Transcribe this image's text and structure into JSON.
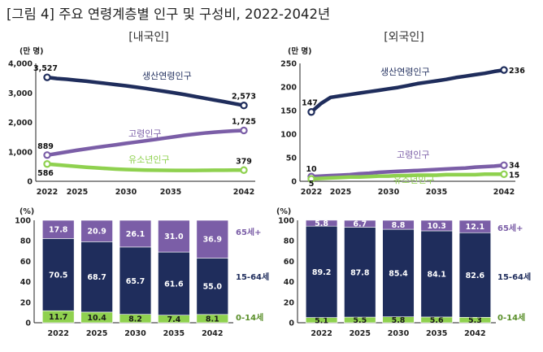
{
  "page_title": "[그림 4] 주요 연령계층별 인구 및 구성비, 2022-2042년",
  "chart_data": [
    {
      "type": "line",
      "panel": "[내국인]",
      "unit_label": "(만 명)",
      "x": [
        2022,
        2042
      ],
      "xticks": [
        "2022",
        "2025",
        "2030",
        "2035",
        "2042"
      ],
      "ylim": [
        0,
        4000
      ],
      "yticks": [
        "0",
        "1,000",
        "2,000",
        "3,000",
        "4,000"
      ],
      "series": [
        {
          "name": "생산연령인구",
          "color": "#1f2d5c",
          "points": [
            [
              2022,
              3527
            ],
            [
              2023,
              3488
            ],
            [
              2024,
              3462
            ],
            [
              2025,
              3430
            ],
            [
              2026,
              3395
            ],
            [
              2027,
              3358
            ],
            [
              2028,
              3318
            ],
            [
              2029,
              3280
            ],
            [
              2030,
              3240
            ],
            [
              2031,
              3198
            ],
            [
              2032,
              3150
            ],
            [
              2033,
              3098
            ],
            [
              2034,
              3048
            ],
            [
              2035,
              2996
            ],
            [
              2036,
              2940
            ],
            [
              2037,
              2880
            ],
            [
              2038,
              2820
            ],
            [
              2039,
              2760
            ],
            [
              2040,
              2700
            ],
            [
              2041,
              2636
            ],
            [
              2042,
              2573
            ]
          ],
          "labels": [
            {
              "x": 2022,
              "y": 3527,
              "text": "3,527"
            },
            {
              "x": 2042,
              "y": 2573,
              "text": "2,573"
            }
          ]
        },
        {
          "name": "고령인구",
          "color": "#7b5ea7",
          "points": [
            [
              2022,
              889
            ],
            [
              2023,
              940
            ],
            [
              2024,
              995
            ],
            [
              2025,
              1050
            ],
            [
              2026,
              1100
            ],
            [
              2027,
              1150
            ],
            [
              2028,
              1195
            ],
            [
              2029,
              1240
            ],
            [
              2030,
              1285
            ],
            [
              2031,
              1330
            ],
            [
              2032,
              1375
            ],
            [
              2033,
              1420
            ],
            [
              2034,
              1468
            ],
            [
              2035,
              1515
            ],
            [
              2036,
              1560
            ],
            [
              2037,
              1600
            ],
            [
              2038,
              1635
            ],
            [
              2039,
              1665
            ],
            [
              2040,
              1690
            ],
            [
              2041,
              1710
            ],
            [
              2042,
              1725
            ]
          ],
          "labels": [
            {
              "x": 2022,
              "y": 889,
              "text": "889"
            },
            {
              "x": 2042,
              "y": 1725,
              "text": "1,725"
            }
          ]
        },
        {
          "name": "유소년인구",
          "color": "#8fd14f",
          "points": [
            [
              2022,
              586
            ],
            [
              2023,
              560
            ],
            [
              2024,
              530
            ],
            [
              2025,
              505
            ],
            [
              2026,
              478
            ],
            [
              2027,
              455
            ],
            [
              2028,
              432
            ],
            [
              2029,
              415
            ],
            [
              2030,
              400
            ],
            [
              2031,
              390
            ],
            [
              2032,
              382
            ],
            [
              2033,
              376
            ],
            [
              2034,
              372
            ],
            [
              2035,
              370
            ],
            [
              2036,
              370
            ],
            [
              2037,
              371
            ],
            [
              2038,
              372
            ],
            [
              2039,
              374
            ],
            [
              2040,
              376
            ],
            [
              2041,
              378
            ],
            [
              2042,
              379
            ]
          ],
          "labels": [
            {
              "x": 2022,
              "y": 586,
              "text": "586"
            },
            {
              "x": 2042,
              "y": 379,
              "text": "379"
            }
          ]
        }
      ]
    },
    {
      "type": "line",
      "panel": "[외국인]",
      "unit_label": "(만 명)",
      "x": [
        2022,
        2042
      ],
      "xticks": [
        "2022",
        "2025",
        "2030",
        "2035",
        "2042"
      ],
      "ylim": [
        0,
        250
      ],
      "yticks": [
        "0",
        "50",
        "100",
        "150",
        "200",
        "250"
      ],
      "series": [
        {
          "name": "생산연령인구",
          "color": "#1f2d5c",
          "points": [
            [
              2022,
              147
            ],
            [
              2023,
              165
            ],
            [
              2024,
              178
            ],
            [
              2025,
              181
            ],
            [
              2026,
              184
            ],
            [
              2027,
              187
            ],
            [
              2028,
              190
            ],
            [
              2029,
              193
            ],
            [
              2030,
              196
            ],
            [
              2031,
              199
            ],
            [
              2032,
              203
            ],
            [
              2033,
              207
            ],
            [
              2034,
              210
            ],
            [
              2035,
              213
            ],
            [
              2036,
              216
            ],
            [
              2037,
              220
            ],
            [
              2038,
              223
            ],
            [
              2039,
              226
            ],
            [
              2040,
              229
            ],
            [
              2041,
              233
            ],
            [
              2042,
              236
            ]
          ],
          "labels": [
            {
              "x": 2022,
              "y": 147,
              "text": "147"
            },
            {
              "x": 2042,
              "y": 236,
              "text": "236"
            }
          ]
        },
        {
          "name": "고령인구",
          "color": "#7b5ea7",
          "points": [
            [
              2022,
              10
            ],
            [
              2023,
              11
            ],
            [
              2024,
              12
            ],
            [
              2025,
              13
            ],
            [
              2026,
              14
            ],
            [
              2027,
              16
            ],
            [
              2028,
              17
            ],
            [
              2029,
              19
            ],
            [
              2030,
              20
            ],
            [
              2031,
              21
            ],
            [
              2032,
              22
            ],
            [
              2033,
              23
            ],
            [
              2034,
              24
            ],
            [
              2035,
              25
            ],
            [
              2036,
              26
            ],
            [
              2037,
              27
            ],
            [
              2038,
              28
            ],
            [
              2039,
              30
            ],
            [
              2040,
              31
            ],
            [
              2041,
              32
            ],
            [
              2042,
              34
            ]
          ],
          "labels": [
            {
              "x": 2022,
              "y": 10,
              "text": "10"
            },
            {
              "x": 2042,
              "y": 34,
              "text": "34"
            }
          ]
        },
        {
          "name": "유소년인구",
          "color": "#8fd14f",
          "points": [
            [
              2022,
              5
            ],
            [
              2023,
              6
            ],
            [
              2024,
              7
            ],
            [
              2025,
              8
            ],
            [
              2026,
              9
            ],
            [
              2027,
              9
            ],
            [
              2028,
              10
            ],
            [
              2029,
              11
            ],
            [
              2030,
              11
            ],
            [
              2031,
              12
            ],
            [
              2032,
              12
            ],
            [
              2033,
              13
            ],
            [
              2034,
              13
            ],
            [
              2035,
              13
            ],
            [
              2036,
              14
            ],
            [
              2037,
              14
            ],
            [
              2038,
              14
            ],
            [
              2039,
              14
            ],
            [
              2040,
              15
            ],
            [
              2041,
              15
            ],
            [
              2042,
              15
            ]
          ],
          "labels": [
            {
              "x": 2022,
              "y": 5,
              "text": "5"
            },
            {
              "x": 2042,
              "y": 15,
              "text": "15"
            }
          ]
        }
      ]
    },
    {
      "type": "bar",
      "stacked": true,
      "unit_label": "(%)",
      "categories": [
        "2022",
        "2025",
        "2030",
        "2035",
        "2042"
      ],
      "ylim": [
        0,
        100
      ],
      "yticks": [
        "0",
        "20",
        "40",
        "60",
        "80",
        "100"
      ],
      "series": [
        {
          "name": "0-14세",
          "color": "#8fd14f",
          "label_color": "#1a1a1a",
          "values": [
            11.7,
            10.4,
            8.2,
            7.4,
            8.1
          ]
        },
        {
          "name": "15-64세",
          "color": "#1f2d5c",
          "label_color": "#ffffff",
          "values": [
            70.5,
            68.7,
            65.7,
            61.6,
            55.0
          ]
        },
        {
          "name": "65세+",
          "color": "#7b5ea7",
          "label_color": "#ffffff",
          "values": [
            17.8,
            20.9,
            26.1,
            31.0,
            36.9
          ]
        }
      ]
    },
    {
      "type": "bar",
      "stacked": true,
      "unit_label": "(%)",
      "categories": [
        "2022",
        "2025",
        "2030",
        "2035",
        "2042"
      ],
      "ylim": [
        0,
        100
      ],
      "yticks": [
        "0",
        "20",
        "40",
        "60",
        "80",
        "100"
      ],
      "series": [
        {
          "name": "0-14세",
          "color": "#8fd14f",
          "label_color": "#1a1a1a",
          "values": [
            5.1,
            5.5,
            5.8,
            5.6,
            5.3
          ]
        },
        {
          "name": "15-64세",
          "color": "#1f2d5c",
          "label_color": "#ffffff",
          "values": [
            89.2,
            87.8,
            85.4,
            84.1,
            82.6
          ]
        },
        {
          "name": "65세+",
          "color": "#7b5ea7",
          "label_color": "#ffffff",
          "values": [
            5.8,
            6.7,
            8.8,
            10.3,
            12.1
          ]
        }
      ]
    }
  ]
}
